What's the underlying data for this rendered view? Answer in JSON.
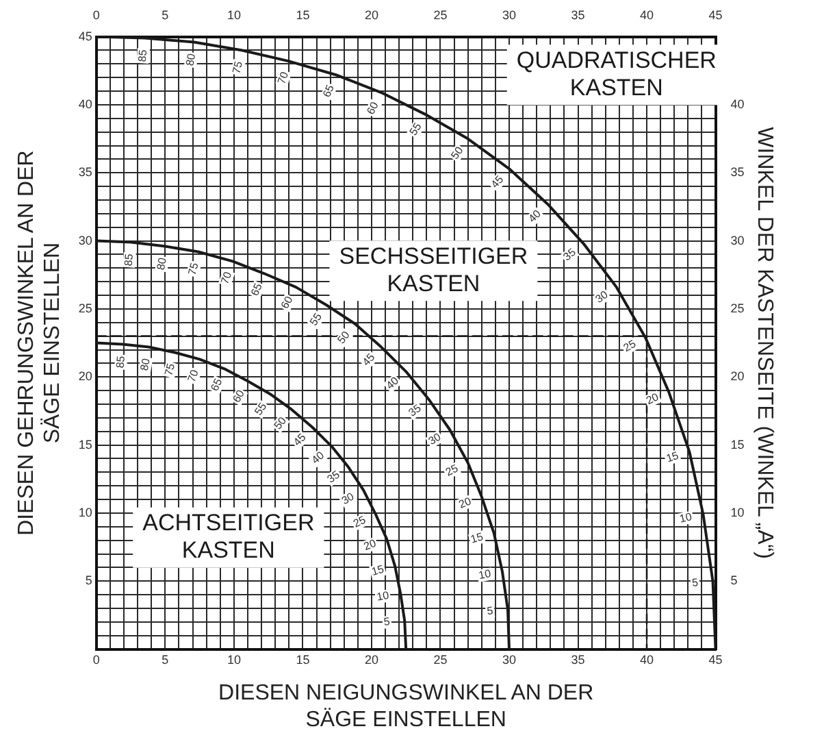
{
  "chart_data": {
    "type": "line",
    "xlabel": "DIESEN NEIGUNGSWINKEL AN DER SÄGE EINSTELLEN",
    "ylabel": "DIESEN GEHRUNGSWINKEL AN DER SÄGE EINSTELLEN",
    "y2label": "WINKEL DER KASTENSEITE (WINKEL „A“)",
    "xlim": [
      0,
      45
    ],
    "ylim": [
      0,
      45
    ],
    "x2lim": [
      0,
      45
    ],
    "y2lim": [
      0,
      45
    ],
    "xticks": [
      0,
      {
        "value": 1,
        "label": null
      },
      {
        "value": 2,
        "label": null
      },
      {
        "value": 3,
        "label": null
      },
      {
        "value": 4,
        "label": null
      },
      5,
      {
        "value": 6,
        "label": null
      },
      {
        "value": 7,
        "label": null
      },
      {
        "value": 8,
        "label": null
      },
      {
        "value": 9,
        "label": null
      },
      10,
      {
        "value": 11,
        "label": null
      },
      {
        "value": 12,
        "label": null
      },
      {
        "value": 13,
        "label": null
      },
      {
        "value": 14,
        "label": null
      },
      15,
      {
        "value": 16,
        "label": null
      },
      {
        "value": 17,
        "label": null
      },
      {
        "value": 18,
        "label": null
      },
      {
        "value": 19,
        "label": null
      },
      20,
      {
        "value": 21,
        "label": null
      },
      {
        "value": 22,
        "label": null
      },
      {
        "value": 23,
        "label": null
      },
      {
        "value": 24,
        "label": null
      },
      25,
      {
        "value": 26,
        "label": null
      },
      {
        "value": 27,
        "label": null
      },
      {
        "value": 28,
        "label": null
      },
      {
        "value": 29,
        "label": null
      },
      30,
      {
        "value": 31,
        "label": null
      },
      {
        "value": 32,
        "label": null
      },
      {
        "value": 33,
        "label": null
      },
      {
        "value": 34,
        "label": null
      },
      35,
      {
        "value": 36,
        "label": null
      },
      {
        "value": 37,
        "label": null
      },
      {
        "value": 38,
        "label": null
      },
      {
        "value": 39,
        "label": null
      },
      40,
      {
        "value": 41,
        "label": null
      },
      {
        "value": 42,
        "label": null
      },
      {
        "value": 43,
        "label": null
      },
      {
        "value": 44,
        "label": null
      },
      45
    ],
    "x2ticks": [
      0,
      5,
      10,
      15,
      20,
      25,
      30,
      35,
      40,
      45
    ],
    "yticks": [
      {
        "value": 0,
        "label": null
      },
      {
        "value": 1,
        "label": null
      },
      {
        "value": 2,
        "label": null
      },
      {
        "value": 3,
        "label": null
      },
      {
        "value": 4,
        "label": null
      },
      5,
      {
        "value": 6,
        "label": null
      },
      {
        "value": 7,
        "label": null
      },
      {
        "value": 8,
        "label": null
      },
      {
        "value": 9,
        "label": null
      },
      10,
      {
        "value": 11,
        "label": null
      },
      {
        "value": 12,
        "label": null
      },
      {
        "value": 13,
        "label": null
      },
      {
        "value": 14,
        "label": null
      },
      15,
      {
        "value": 16,
        "label": null
      },
      {
        "value": 17,
        "label": null
      },
      {
        "value": 18,
        "label": null
      },
      {
        "value": 19,
        "label": null
      },
      20,
      {
        "value": 21,
        "label": null
      },
      {
        "value": 22,
        "label": null
      },
      {
        "value": 23,
        "label": null
      },
      {
        "value": 24,
        "label": null
      },
      25,
      {
        "value": 26,
        "label": null
      },
      {
        "value": 27,
        "label": null
      },
      {
        "value": 28,
        "label": null
      },
      {
        "value": 29,
        "label": null
      },
      30,
      {
        "value": 31,
        "label": null
      },
      {
        "value": 32,
        "label": null
      },
      {
        "value": 33,
        "label": null
      },
      {
        "value": 34,
        "label": null
      },
      35,
      {
        "value": 36,
        "label": null
      },
      {
        "value": 37,
        "label": null
      },
      {
        "value": 38,
        "label": null
      },
      {
        "value": 39,
        "label": null
      },
      40,
      {
        "value": 41,
        "label": null
      },
      {
        "value": 42,
        "label": null
      },
      {
        "value": 43,
        "label": null
      },
      {
        "value": 44,
        "label": null
      },
      45
    ],
    "y2ticks": [
      5,
      10,
      15,
      20,
      25,
      30,
      35,
      40
    ],
    "grid": true,
    "series": [
      {
        "name": "QUADRATISCHER KASTEN",
        "color": "#1a1a1a",
        "x": [
          0,
          3.5,
          7.1,
          10.6,
          14.0,
          17.4,
          20.7,
          23.9,
          27.0,
          30.0,
          32.8,
          35.4,
          37.8,
          39.9,
          41.6,
          43.1,
          44.1,
          44.8,
          45
        ],
        "values": [
          45,
          44.9,
          44.6,
          44.0,
          43.2,
          42.2,
          40.9,
          39.3,
          37.5,
          35.3,
          32.7,
          29.8,
          26.6,
          22.9,
          18.9,
          14.5,
          9.9,
          5.0,
          0
        ]
      },
      {
        "name": "SECHSSEITIGER KASTEN",
        "color": "#1a1a1a",
        "x": [
          0,
          2.5,
          5.0,
          7.4,
          9.9,
          12.2,
          14.5,
          16.7,
          18.8,
          20.7,
          22.5,
          24.2,
          25.7,
          27.0,
          28.0,
          28.9,
          29.5,
          29.9,
          30
        ],
        "values": [
          30,
          29.9,
          29.6,
          29.2,
          28.5,
          27.6,
          26.6,
          25.3,
          23.9,
          22.2,
          20.4,
          18.3,
          16.1,
          13.7,
          11.2,
          8.5,
          5.7,
          2.9,
          0
        ]
      },
      {
        "name": "ACHTSEITIGER KASTEN",
        "color": "#1a1a1a",
        "x": [
          0,
          1.9,
          3.8,
          5.7,
          7.5,
          9.3,
          11.0,
          12.7,
          14.2,
          15.7,
          17.1,
          18.3,
          19.4,
          20.3,
          21.1,
          21.7,
          22.1,
          22.4,
          22.5
        ],
        "values": [
          22.5,
          22.4,
          22.2,
          21.8,
          21.3,
          20.6,
          19.7,
          18.7,
          17.6,
          16.3,
          14.9,
          13.4,
          11.7,
          9.9,
          8.1,
          6.1,
          4.1,
          2.1,
          0
        ]
      },
      {
        "color": "#1a1a1a",
        "line_style": "dashed",
        "x": [
          0,
          40,
          40
        ],
        "values": [
          23,
          23,
          0
        ]
      }
    ],
    "annotations": [
      {
        "text": "85",
        "x": 3.5,
        "y": 44.9
      },
      {
        "text": "80",
        "x": 7.1,
        "y": 44.6
      },
      {
        "text": "75",
        "x": 10.6,
        "y": 44.0
      },
      {
        "text": "70",
        "x": 14.0,
        "y": 43.2
      },
      {
        "text": "65",
        "x": 17.4,
        "y": 42.2
      },
      {
        "text": "60",
        "x": 20.7,
        "y": 40.9
      },
      {
        "text": "55",
        "x": 23.9,
        "y": 39.3
      },
      {
        "text": "50",
        "x": 27.0,
        "y": 37.5
      },
      {
        "text": "45",
        "x": 30.0,
        "y": 35.3
      },
      {
        "text": "40",
        "x": 32.8,
        "y": 32.7
      },
      {
        "text": "35",
        "x": 35.4,
        "y": 29.8
      },
      {
        "text": "30",
        "x": 37.8,
        "y": 26.6
      },
      {
        "text": "25",
        "x": 39.9,
        "y": 22.9
      },
      {
        "text": "20",
        "x": 41.6,
        "y": 18.9
      },
      {
        "text": "15",
        "x": 43.1,
        "y": 14.5
      },
      {
        "text": "10",
        "x": 44.1,
        "y": 9.9
      },
      {
        "text": "5",
        "x": 44.8,
        "y": 5.0
      },
      {
        "text": "85",
        "x": 2.5,
        "y": 29.9
      },
      {
        "text": "80",
        "x": 5.0,
        "y": 29.6
      },
      {
        "text": "75",
        "x": 7.4,
        "y": 29.2
      },
      {
        "text": "70",
        "x": 9.9,
        "y": 28.5
      },
      {
        "text": "65",
        "x": 12.2,
        "y": 27.6
      },
      {
        "text": "60",
        "x": 14.5,
        "y": 26.6
      },
      {
        "text": "55",
        "x": 16.7,
        "y": 25.3
      },
      {
        "text": "50",
        "x": 18.8,
        "y": 23.9
      },
      {
        "text": "45",
        "x": 20.7,
        "y": 22.2
      },
      {
        "text": "40",
        "x": 22.5,
        "y": 20.4
      },
      {
        "text": "35",
        "x": 24.2,
        "y": 18.3
      },
      {
        "text": "30",
        "x": 25.7,
        "y": 16.1
      },
      {
        "text": "25",
        "x": 27.0,
        "y": 13.7
      },
      {
        "text": "20",
        "x": 28.0,
        "y": 11.2
      },
      {
        "text": "15",
        "x": 28.9,
        "y": 8.5
      },
      {
        "text": "10",
        "x": 29.5,
        "y": 5.7
      },
      {
        "text": "5",
        "x": 29.9,
        "y": 2.9
      },
      {
        "text": "85",
        "x": 1.9,
        "y": 22.4
      },
      {
        "text": "80",
        "x": 3.8,
        "y": 22.2
      },
      {
        "text": "75",
        "x": 5.7,
        "y": 21.8
      },
      {
        "text": "70",
        "x": 7.5,
        "y": 21.3
      },
      {
        "text": "65",
        "x": 9.3,
        "y": 20.6
      },
      {
        "text": "60",
        "x": 11.0,
        "y": 19.7
      },
      {
        "text": "55",
        "x": 12.7,
        "y": 18.7
      },
      {
        "text": "50",
        "x": 14.2,
        "y": 17.6
      },
      {
        "text": "45",
        "x": 15.7,
        "y": 16.3
      },
      {
        "text": "40",
        "x": 17.1,
        "y": 14.9
      },
      {
        "text": "35",
        "x": 18.3,
        "y": 13.4
      },
      {
        "text": "30",
        "x": 19.4,
        "y": 11.7
      },
      {
        "text": "25",
        "x": 20.3,
        "y": 9.9
      },
      {
        "text": "20",
        "x": 21.1,
        "y": 8.1
      },
      {
        "text": "15",
        "x": 21.7,
        "y": 6.1
      },
      {
        "text": "10",
        "x": 22.1,
        "y": 4.1
      },
      {
        "text": "5",
        "x": 22.4,
        "y": 2.1
      }
    ]
  }
}
